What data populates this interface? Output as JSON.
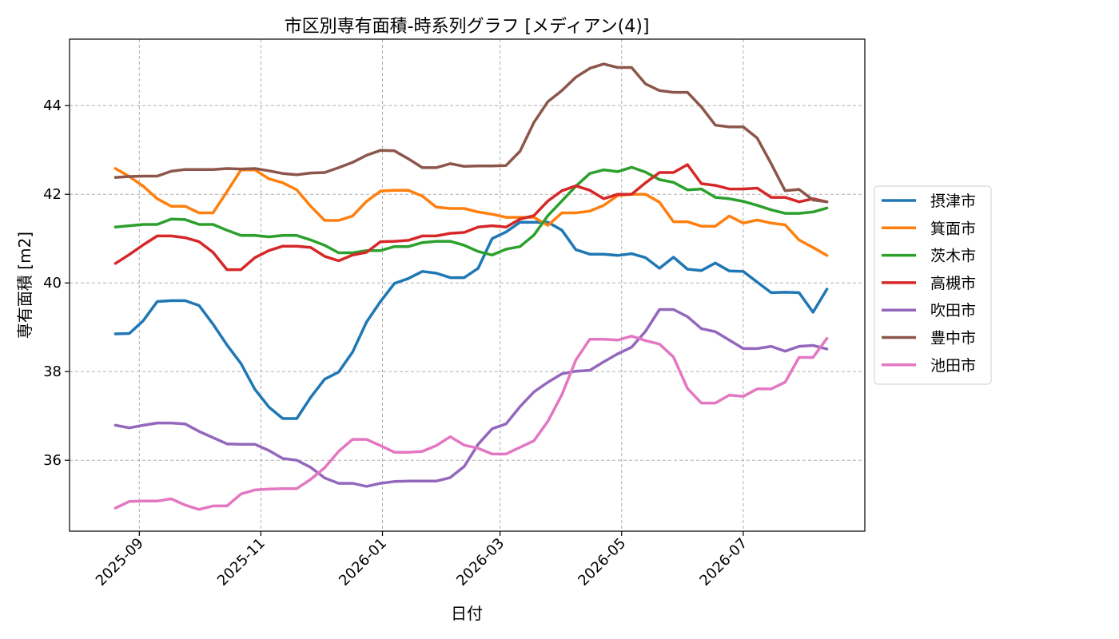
{
  "chart_data": {
    "type": "line",
    "title": "市区別専有面積-時系列グラフ [メディアン(4)]",
    "xlabel": "日付",
    "ylabel": "専有面積 [m2]",
    "x_range": [
      "2025-07-28",
      "2026-08-31"
    ],
    "ylim": [
      34.4,
      45.5
    ],
    "y_ticks": [
      36,
      38,
      40,
      42,
      44
    ],
    "x_ticks": [
      "2025-09-01",
      "2025-11-01",
      "2026-01-01",
      "2026-03-01",
      "2026-05-01",
      "2026-07-01"
    ],
    "x_tick_labels": [
      "2025-09",
      "2025-11",
      "2026-01",
      "2026-03",
      "2026-05",
      "2026-07"
    ],
    "grid": true,
    "legend_position": "right-outside",
    "x": [
      "2025-08-20",
      "2025-08-27",
      "2025-09-03",
      "2025-09-10",
      "2025-09-17",
      "2025-09-24",
      "2025-10-01",
      "2025-10-08",
      "2025-10-15",
      "2025-10-22",
      "2025-10-29",
      "2025-11-05",
      "2025-11-12",
      "2025-11-19",
      "2025-11-26",
      "2025-12-03",
      "2025-12-10",
      "2025-12-17",
      "2025-12-24",
      "2025-12-31",
      "2026-01-07",
      "2026-01-14",
      "2026-01-21",
      "2026-01-28",
      "2026-02-04",
      "2026-02-11",
      "2026-02-18",
      "2026-02-25",
      "2026-03-04",
      "2026-03-11",
      "2026-03-18",
      "2026-03-25",
      "2026-04-01",
      "2026-04-08",
      "2026-04-15",
      "2026-04-22",
      "2026-04-29",
      "2026-05-06",
      "2026-05-13",
      "2026-05-20",
      "2026-05-27",
      "2026-06-03",
      "2026-06-10",
      "2026-06-17",
      "2026-06-24",
      "2026-07-01",
      "2026-07-08",
      "2026-07-15",
      "2026-07-22",
      "2026-07-29",
      "2026-08-05",
      "2026-08-12"
    ],
    "series": [
      {
        "name": "摂津市",
        "color": "#1f77b4",
        "values": [
          38.85,
          38.86,
          39.15,
          39.58,
          39.6,
          39.6,
          39.49,
          39.07,
          38.6,
          38.18,
          37.6,
          37.2,
          36.94,
          36.94,
          37.42,
          37.83,
          37.99,
          38.44,
          39.12,
          39.58,
          39.99,
          40.1,
          40.26,
          40.22,
          40.12,
          40.12,
          40.33,
          41.0,
          41.15,
          41.37,
          41.37,
          41.37,
          41.19,
          40.75,
          40.65,
          40.65,
          40.62,
          40.66,
          40.57,
          40.33,
          40.58,
          40.31,
          40.28,
          40.45,
          40.27,
          40.26,
          40.02,
          39.78,
          39.79,
          39.78,
          39.34,
          39.86
        ]
      },
      {
        "name": "箕面市",
        "color": "#ff7f0e",
        "values": [
          42.58,
          42.4,
          42.18,
          41.9,
          41.73,
          41.73,
          41.58,
          41.58,
          42.06,
          42.55,
          42.55,
          42.35,
          42.26,
          42.1,
          41.73,
          41.41,
          41.41,
          41.51,
          41.84,
          42.07,
          42.09,
          42.09,
          41.96,
          41.71,
          41.68,
          41.68,
          41.6,
          41.55,
          41.48,
          41.48,
          41.48,
          41.3,
          41.58,
          41.58,
          41.62,
          41.75,
          41.97,
          42.0,
          42.0,
          41.82,
          41.38,
          41.38,
          41.28,
          41.28,
          41.51,
          41.35,
          41.42,
          41.35,
          41.31,
          40.97,
          40.8,
          40.62
        ]
      },
      {
        "name": "茨木市",
        "color": "#2ca02c",
        "values": [
          41.26,
          41.29,
          41.32,
          41.32,
          41.44,
          41.43,
          41.32,
          41.32,
          41.19,
          41.07,
          41.07,
          41.04,
          41.07,
          41.07,
          40.97,
          40.85,
          40.68,
          40.68,
          40.73,
          40.73,
          40.82,
          40.82,
          40.91,
          40.94,
          40.94,
          40.85,
          40.71,
          40.63,
          40.76,
          40.82,
          41.08,
          41.52,
          41.85,
          42.18,
          42.47,
          42.55,
          42.51,
          42.61,
          42.5,
          42.33,
          42.27,
          42.1,
          42.12,
          41.93,
          41.9,
          41.84,
          41.75,
          41.65,
          41.57,
          41.57,
          41.6,
          41.69
        ]
      },
      {
        "name": "高槻市",
        "color": "#d62728",
        "values": [
          40.44,
          40.64,
          40.86,
          41.06,
          41.06,
          41.02,
          40.93,
          40.69,
          40.3,
          40.3,
          40.57,
          40.73,
          40.83,
          40.83,
          40.8,
          40.6,
          40.5,
          40.63,
          40.69,
          40.93,
          40.94,
          40.96,
          41.06,
          41.06,
          41.12,
          41.14,
          41.26,
          41.29,
          41.26,
          41.44,
          41.52,
          41.85,
          42.08,
          42.19,
          42.09,
          41.9,
          42.0,
          42.0,
          42.26,
          42.49,
          42.49,
          42.67,
          42.24,
          42.2,
          42.12,
          42.12,
          42.14,
          41.93,
          41.93,
          41.83,
          41.9,
          41.83
        ]
      },
      {
        "name": "吹田市",
        "color": "#9467bd",
        "values": [
          36.79,
          36.73,
          36.79,
          36.84,
          36.84,
          36.82,
          36.65,
          36.51,
          36.37,
          36.36,
          36.36,
          36.22,
          36.04,
          36.0,
          35.84,
          35.6,
          35.48,
          35.48,
          35.41,
          35.48,
          35.52,
          35.53,
          35.53,
          35.53,
          35.61,
          35.86,
          36.36,
          36.71,
          36.82,
          37.21,
          37.54,
          37.76,
          37.95,
          38.01,
          38.03,
          38.22,
          38.4,
          38.55,
          38.91,
          39.4,
          39.4,
          39.24,
          38.97,
          38.9,
          38.71,
          38.52,
          38.52,
          38.57,
          38.46,
          38.57,
          38.59,
          38.51
        ]
      },
      {
        "name": "豊中市",
        "color": "#8c564b",
        "values": [
          42.38,
          42.4,
          42.41,
          42.41,
          42.52,
          42.56,
          42.56,
          42.56,
          42.58,
          42.57,
          42.58,
          42.53,
          42.47,
          42.44,
          42.48,
          42.49,
          42.6,
          42.72,
          42.88,
          42.99,
          42.98,
          42.8,
          42.6,
          42.6,
          42.69,
          42.63,
          42.64,
          42.64,
          42.65,
          42.97,
          43.62,
          44.09,
          44.34,
          44.64,
          44.84,
          44.94,
          44.86,
          44.86,
          44.49,
          44.34,
          44.3,
          44.3,
          43.97,
          43.56,
          43.52,
          43.52,
          43.27,
          42.69,
          42.08,
          42.11,
          41.87,
          41.83
        ]
      },
      {
        "name": "池田市",
        "color": "#e377c2",
        "values": [
          34.92,
          35.07,
          35.08,
          35.08,
          35.13,
          34.99,
          34.89,
          34.97,
          34.97,
          35.24,
          35.33,
          35.35,
          35.36,
          35.36,
          35.57,
          35.83,
          36.2,
          36.47,
          36.47,
          36.33,
          36.18,
          36.18,
          36.2,
          36.33,
          36.53,
          36.34,
          36.27,
          36.14,
          36.14,
          36.29,
          36.44,
          36.88,
          37.48,
          38.26,
          38.73,
          38.73,
          38.71,
          38.8,
          38.7,
          38.62,
          38.33,
          37.62,
          37.29,
          37.29,
          37.47,
          37.44,
          37.61,
          37.61,
          37.76,
          38.32,
          38.32,
          38.75
        ]
      }
    ]
  }
}
